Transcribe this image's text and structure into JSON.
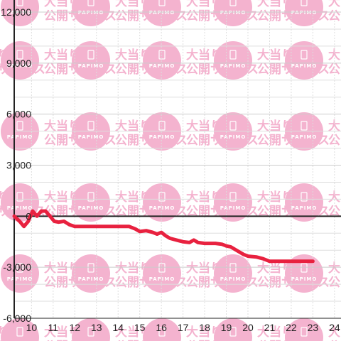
{
  "chart_data": {
    "type": "line",
    "title": "",
    "xlabel": "",
    "ylabel": "",
    "xlim": [
      9.2,
      24.3
    ],
    "ylim": [
      -6000,
      12000
    ],
    "x_ticks": [
      10,
      11,
      12,
      13,
      14,
      15,
      16,
      17,
      18,
      19,
      20,
      21,
      22,
      23,
      24
    ],
    "x_tick_labels": [
      "10",
      "11",
      "12",
      "13",
      "14",
      "15",
      "16",
      "17",
      "18",
      "19",
      "20",
      "21",
      "22",
      "23",
      "24"
    ],
    "y_ticks": [
      12000,
      9000,
      6000,
      3000,
      0,
      -3000,
      -6000
    ],
    "y_tick_labels": [
      "12,000",
      "9,000",
      "6,000",
      "3,000",
      "0",
      "-3,000",
      "-6,000"
    ],
    "grid": true,
    "series": [
      {
        "color": "#e8213f",
        "x": [
          9.2,
          9.45,
          9.65,
          9.85,
          10.05,
          10.25,
          10.45,
          10.65,
          10.85,
          11.05,
          11.25,
          11.5,
          11.75,
          12.0,
          12.5,
          13.0,
          13.5,
          14.0,
          14.5,
          14.8,
          15.0,
          15.3,
          15.6,
          15.8,
          16.0,
          16.2,
          16.4,
          16.7,
          17.0,
          17.3,
          17.5,
          17.7,
          18.0,
          18.5,
          18.8,
          19.0,
          19.2,
          19.4,
          19.6,
          19.8,
          20.0,
          20.4,
          20.7,
          21.0,
          21.5,
          22.0,
          22.5,
          23.0
        ],
        "y": [
          0,
          -300,
          -600,
          -300,
          300,
          0,
          300,
          300,
          0,
          -300,
          -350,
          -300,
          -500,
          -600,
          -600,
          -600,
          -600,
          -600,
          -600,
          -750,
          -900,
          -850,
          -950,
          -1050,
          -950,
          -1150,
          -1300,
          -1400,
          -1500,
          -1550,
          -1400,
          -1550,
          -1600,
          -1600,
          -1650,
          -1750,
          -1800,
          -1950,
          -2100,
          -2250,
          -2350,
          -2400,
          -2500,
          -2650,
          -2650,
          -2650,
          -2650,
          -2650
        ]
      }
    ]
  },
  "watermark": {
    "line1": "大当り情報",
    "line2": "公開サービス",
    "brand": "PAPIMO",
    "color": "#f4b3cf"
  },
  "colors": {
    "axis": "#222222",
    "grid_major": "#cccccc",
    "grid_minor": "#dddddd",
    "background": "#ffffff"
  }
}
